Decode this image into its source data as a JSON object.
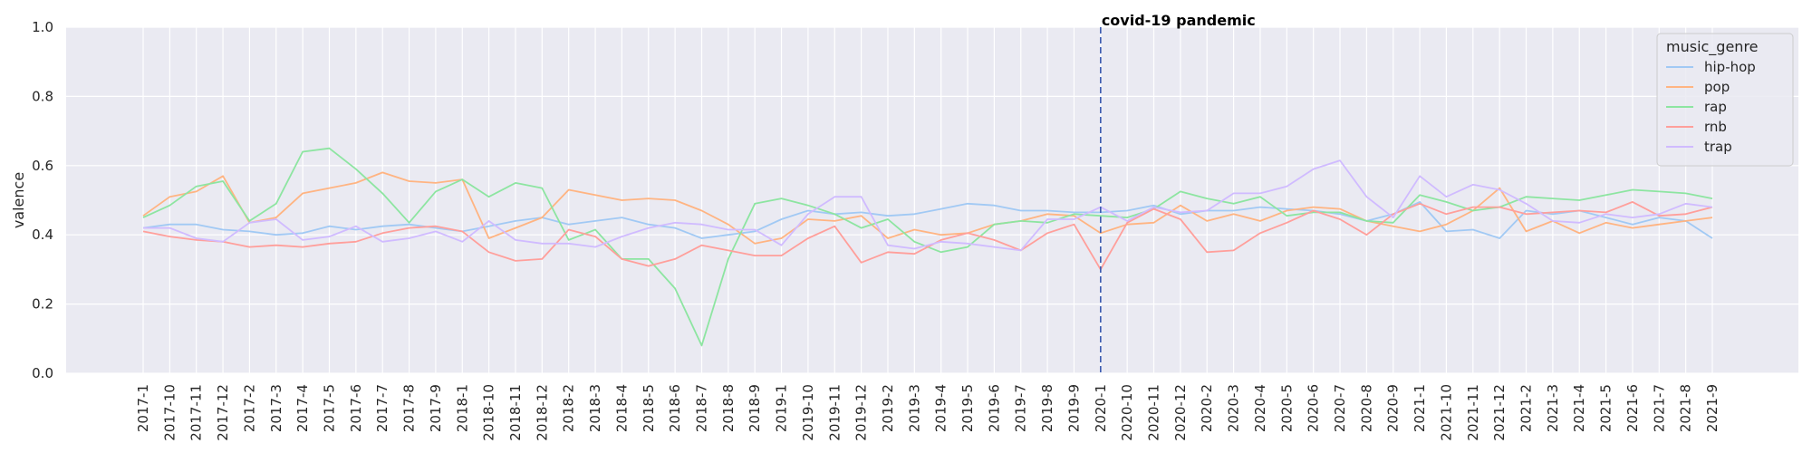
{
  "chart_data": {
    "type": "line",
    "ylabel": "valence",
    "ylim": [
      0,
      1
    ],
    "yticks": [
      "0.0",
      "0.2",
      "0.4",
      "0.6",
      "0.8",
      "1.0"
    ],
    "grid": true,
    "legend_title": "music_genre",
    "legend_position": "top-right",
    "annotation": {
      "text": "covid-19 pandemic",
      "x": "2020-1"
    },
    "x": [
      "2017-1",
      "2017-10",
      "2017-11",
      "2017-12",
      "2017-2",
      "2017-3",
      "2017-4",
      "2017-5",
      "2017-6",
      "2017-7",
      "2017-8",
      "2017-9",
      "2018-1",
      "2018-10",
      "2018-11",
      "2018-12",
      "2018-2",
      "2018-3",
      "2018-4",
      "2018-5",
      "2018-6",
      "2018-7",
      "2018-8",
      "2018-9",
      "2019-1",
      "2019-10",
      "2019-11",
      "2019-12",
      "2019-2",
      "2019-3",
      "2019-4",
      "2019-5",
      "2019-6",
      "2019-7",
      "2019-8",
      "2019-9",
      "2020-1",
      "2020-10",
      "2020-11",
      "2020-12",
      "2020-2",
      "2020-3",
      "2020-4",
      "2020-5",
      "2020-6",
      "2020-7",
      "2020-8",
      "2020-9",
      "2021-1",
      "2021-10",
      "2021-11",
      "2021-12",
      "2021-2",
      "2021-3",
      "2021-4",
      "2021-5",
      "2021-6",
      "2021-7",
      "2021-8",
      "2021-9"
    ],
    "series": [
      {
        "name": "hip-hop",
        "color": "#a1c9f4",
        "values": [
          0.42,
          0.43,
          0.43,
          0.415,
          0.41,
          0.4,
          0.405,
          0.425,
          0.415,
          0.425,
          0.43,
          0.42,
          0.41,
          0.425,
          0.44,
          0.45,
          0.43,
          0.44,
          0.45,
          0.43,
          0.42,
          0.39,
          0.4,
          0.41,
          0.445,
          0.47,
          0.46,
          0.465,
          0.455,
          0.46,
          0.475,
          0.49,
          0.485,
          0.47,
          0.47,
          0.465,
          0.465,
          0.47,
          0.485,
          0.46,
          0.47,
          0.47,
          0.48,
          0.475,
          0.47,
          0.46,
          0.44,
          0.46,
          0.495,
          0.41,
          0.415,
          0.39,
          0.47,
          0.46,
          0.47,
          0.45,
          0.43,
          0.45,
          0.44,
          0.39
        ]
      },
      {
        "name": "pop",
        "color": "#ffb482",
        "values": [
          0.455,
          0.51,
          0.525,
          0.57,
          0.435,
          0.45,
          0.52,
          0.535,
          0.55,
          0.58,
          0.555,
          0.55,
          0.56,
          0.39,
          0.42,
          0.45,
          0.53,
          0.515,
          0.5,
          0.505,
          0.5,
          0.47,
          0.43,
          0.375,
          0.39,
          0.445,
          0.44,
          0.455,
          0.39,
          0.415,
          0.4,
          0.405,
          0.43,
          0.44,
          0.46,
          0.455,
          0.405,
          0.43,
          0.435,
          0.485,
          0.44,
          0.46,
          0.44,
          0.47,
          0.48,
          0.475,
          0.44,
          0.425,
          0.41,
          0.43,
          0.47,
          0.535,
          0.41,
          0.44,
          0.405,
          0.435,
          0.42,
          0.43,
          0.44,
          0.45
        ]
      },
      {
        "name": "rap",
        "color": "#8de5a1",
        "values": [
          0.45,
          0.485,
          0.54,
          0.555,
          0.44,
          0.49,
          0.64,
          0.65,
          0.59,
          0.52,
          0.435,
          0.525,
          0.56,
          0.51,
          0.55,
          0.535,
          0.385,
          0.415,
          0.33,
          0.33,
          0.245,
          0.08,
          0.33,
          0.49,
          0.505,
          0.485,
          0.46,
          0.42,
          0.445,
          0.38,
          0.35,
          0.365,
          0.43,
          0.44,
          0.435,
          0.46,
          0.455,
          0.45,
          0.475,
          0.525,
          0.505,
          0.49,
          0.51,
          0.455,
          0.465,
          0.465,
          0.44,
          0.435,
          0.515,
          0.495,
          0.47,
          0.48,
          0.51,
          0.505,
          0.5,
          0.515,
          0.53,
          0.525,
          0.52,
          0.505
        ]
      },
      {
        "name": "rnb",
        "color": "#ff9f9b",
        "values": [
          0.41,
          0.395,
          0.385,
          0.38,
          0.365,
          0.37,
          0.365,
          0.375,
          0.38,
          0.405,
          0.42,
          0.425,
          0.41,
          0.35,
          0.325,
          0.33,
          0.415,
          0.395,
          0.33,
          0.31,
          0.33,
          0.37,
          0.355,
          0.34,
          0.34,
          0.39,
          0.425,
          0.32,
          0.35,
          0.345,
          0.385,
          0.405,
          0.385,
          0.355,
          0.405,
          0.43,
          0.3,
          0.435,
          0.475,
          0.445,
          0.35,
          0.355,
          0.405,
          0.435,
          0.47,
          0.445,
          0.4,
          0.46,
          0.49,
          0.46,
          0.48,
          0.48,
          0.46,
          0.465,
          0.47,
          0.465,
          0.495,
          0.455,
          0.46,
          0.48
        ]
      },
      {
        "name": "trap",
        "color": "#d0bbff",
        "values": [
          0.42,
          0.42,
          0.39,
          0.38,
          0.435,
          0.445,
          0.385,
          0.395,
          0.425,
          0.38,
          0.39,
          0.41,
          0.38,
          0.44,
          0.385,
          0.375,
          0.375,
          0.365,
          0.395,
          0.42,
          0.435,
          0.43,
          0.415,
          0.415,
          0.37,
          0.46,
          0.51,
          0.51,
          0.37,
          0.36,
          0.38,
          0.375,
          0.365,
          0.355,
          0.445,
          0.445,
          0.48,
          0.44,
          0.48,
          0.465,
          0.47,
          0.52,
          0.52,
          0.54,
          0.59,
          0.615,
          0.51,
          0.45,
          0.57,
          0.51,
          0.545,
          0.53,
          0.49,
          0.44,
          0.435,
          0.46,
          0.45,
          0.46,
          0.49,
          0.48
        ]
      }
    ]
  }
}
